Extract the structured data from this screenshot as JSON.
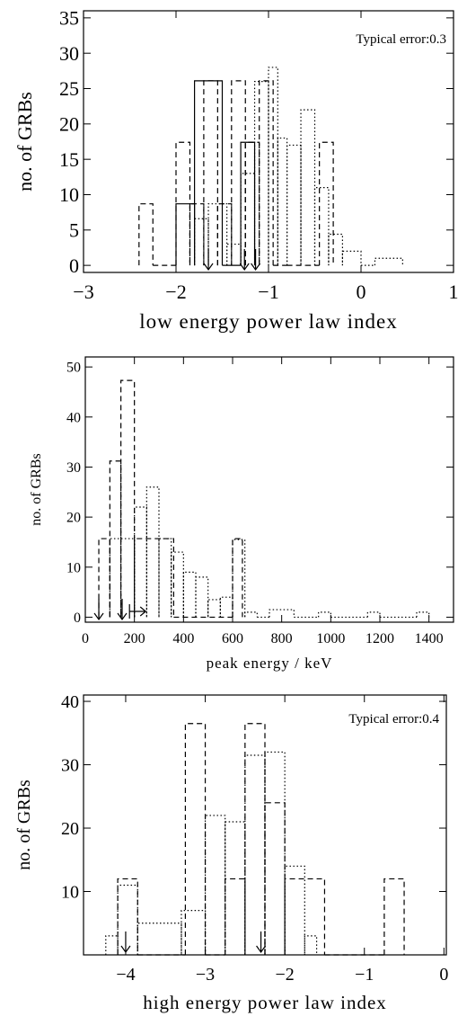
{
  "chart_data": [
    {
      "type": "histogram",
      "xlabel": "low energy power law index",
      "ylabel": "no. of GRBs",
      "annotation": "Typical error:0.3",
      "xlim": [
        -3,
        1
      ],
      "ylim": [
        -1,
        36
      ],
      "xticks": [
        {
          "value": -3,
          "label": "−3"
        },
        {
          "value": -2,
          "label": "−2"
        },
        {
          "value": -1,
          "label": "−1"
        },
        0,
        1
      ],
      "yticks": [
        0,
        5,
        10,
        15,
        20,
        25,
        30,
        35
      ],
      "series": [
        {
          "style": "solid",
          "color": "#000000",
          "bins": [
            -2.0,
            -1.8,
            -1.5,
            -1.3,
            -1.15
          ],
          "values": [
            8.7,
            26.1,
            0,
            17.4
          ]
        },
        {
          "style": "dashed",
          "color": "#000000",
          "bins": [
            -2.4,
            -2.25,
            -2.0,
            -1.85,
            -1.7,
            -1.55,
            -1.4,
            -1.25,
            -1.1,
            -0.95,
            -0.8,
            -0.6,
            -0.45,
            -0.3
          ],
          "values": [
            8.7,
            0,
            17.4,
            8.7,
            26.1,
            8.7,
            26.1,
            17.4,
            26.1,
            0,
            0,
            0,
            17.4
          ]
        },
        {
          "style": "dotted",
          "color": "#000000",
          "bins": [
            -1.8,
            -1.65,
            -1.45,
            -1.3,
            -1.15,
            -1.0,
            -0.9,
            -0.8,
            -0.65,
            -0.5,
            -0.35,
            -0.2,
            0,
            0.15,
            0.45
          ],
          "values": [
            6.6,
            8.7,
            3,
            13,
            26,
            28,
            18,
            17,
            22,
            11,
            4.4,
            2,
            0,
            1
          ]
        }
      ],
      "arrows": [
        -1.65,
        -1.26,
        -1.14
      ]
    },
    {
      "type": "histogram",
      "xlabel": "peak energy / keV",
      "ylabel": "no. of GRBs",
      "xlim": [
        0,
        1500
      ],
      "ylim": [
        -1,
        52
      ],
      "xticks": [
        0,
        200,
        400,
        600,
        800,
        1000,
        1200,
        1400
      ],
      "yticks": [
        0,
        10,
        20,
        30,
        40,
        50
      ],
      "series": [
        {
          "style": "dashed",
          "color": "#000000",
          "bins": [
            55,
            100,
            145,
            200,
            360,
            600,
            640
          ],
          "values": [
            15.7,
            31.2,
            47.3,
            15.7,
            0,
            15.7
          ]
        },
        {
          "style": "dotted",
          "color": "#000000",
          "bins": [
            100,
            200,
            250,
            300,
            350,
            400,
            450,
            500,
            550,
            600,
            650,
            700,
            750,
            850,
            950,
            1000,
            1150,
            1200,
            1350,
            1400
          ],
          "values": [
            15.7,
            22,
            26,
            15.7,
            13,
            9,
            8,
            3.5,
            4,
            15.5,
            1,
            0,
            1.5,
            0,
            1,
            0,
            1,
            0,
            1
          ]
        }
      ],
      "arrows": [
        55,
        150
      ],
      "limit_arrows": [
        180
      ]
    },
    {
      "type": "histogram",
      "xlabel": "high energy power law index",
      "ylabel": "no. of GRBs",
      "annotation": "Typical error:0.4",
      "xlim": [
        -4.53,
        0.03
      ],
      "ylim": [
        0,
        41
      ],
      "xticks": [
        {
          "value": -4,
          "label": "−4"
        },
        {
          "value": -3,
          "label": "−3"
        },
        {
          "value": -2,
          "label": "−2"
        },
        {
          "value": -1,
          "label": "−1"
        },
        0
      ],
      "yticks": [
        10,
        20,
        30,
        40
      ],
      "series": [
        {
          "style": "dashed",
          "color": "#000000",
          "bins": [
            -4.1,
            -3.85,
            -3.25,
            -3.0,
            -2.75,
            -2.5,
            -2.25,
            -2.0,
            -1.5,
            -0.75,
            -0.5
          ],
          "values": [
            12,
            0,
            36.5,
            0,
            12,
            36.5,
            24,
            12,
            0,
            12
          ]
        },
        {
          "style": "dotted",
          "color": "#000000",
          "bins": [
            -4.25,
            -4.1,
            -3.85,
            -3.3,
            -3.0,
            -2.75,
            -2.5,
            -2.25,
            -2.0,
            -1.75,
            -1.6
          ],
          "values": [
            3,
            11,
            5,
            7,
            22,
            21,
            31.5,
            32,
            14,
            3
          ]
        }
      ],
      "arrows": [
        -4.0,
        -2.3
      ]
    }
  ]
}
